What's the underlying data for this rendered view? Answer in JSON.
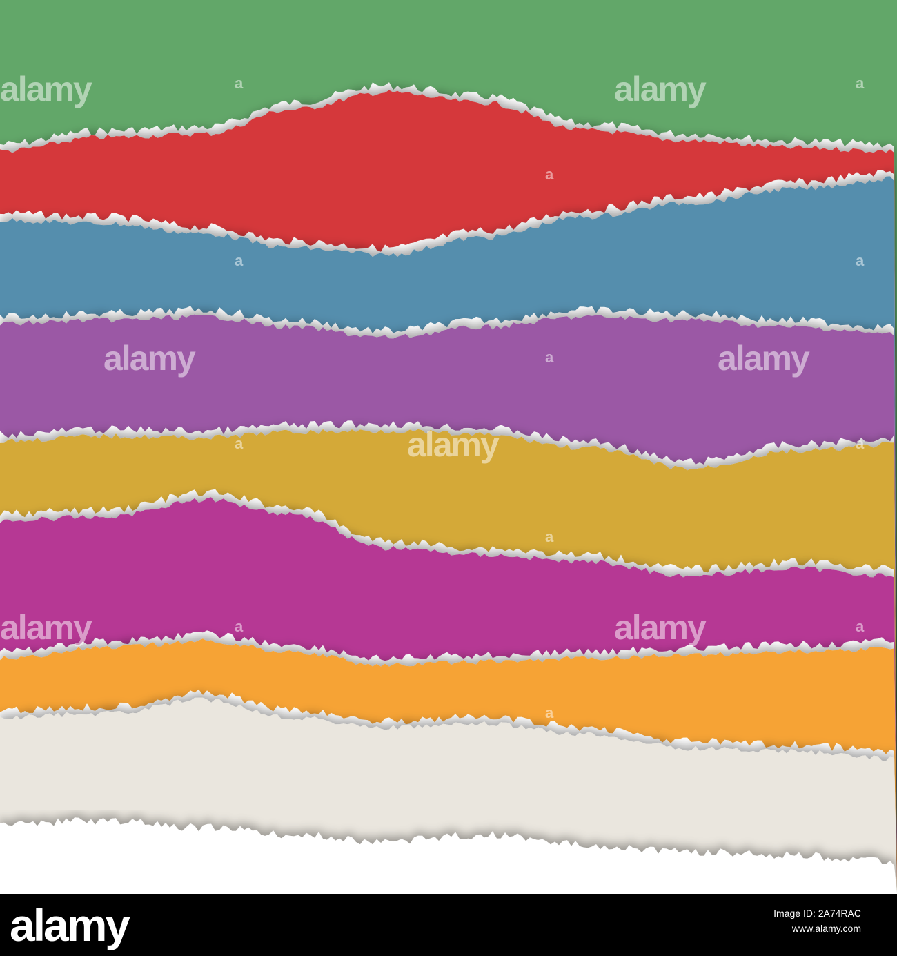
{
  "image": {
    "background": "#ffffff",
    "strips": [
      {
        "name": "green",
        "color": "#62a769"
      },
      {
        "name": "red",
        "color": "#d5373b"
      },
      {
        "name": "blue",
        "color": "#548ead"
      },
      {
        "name": "purple",
        "color": "#9b58a5"
      },
      {
        "name": "mustard",
        "color": "#d4a937"
      },
      {
        "name": "magenta",
        "color": "#b63794"
      },
      {
        "name": "orange",
        "color": "#f6a334"
      },
      {
        "name": "cream",
        "color": "#eae6de"
      }
    ]
  },
  "watermark": {
    "word": "alamy",
    "letter": "a"
  },
  "footer": {
    "logo": "alamy",
    "image_id_label": "Image ID: 2A74RAC",
    "url": "www.alamy.com"
  }
}
